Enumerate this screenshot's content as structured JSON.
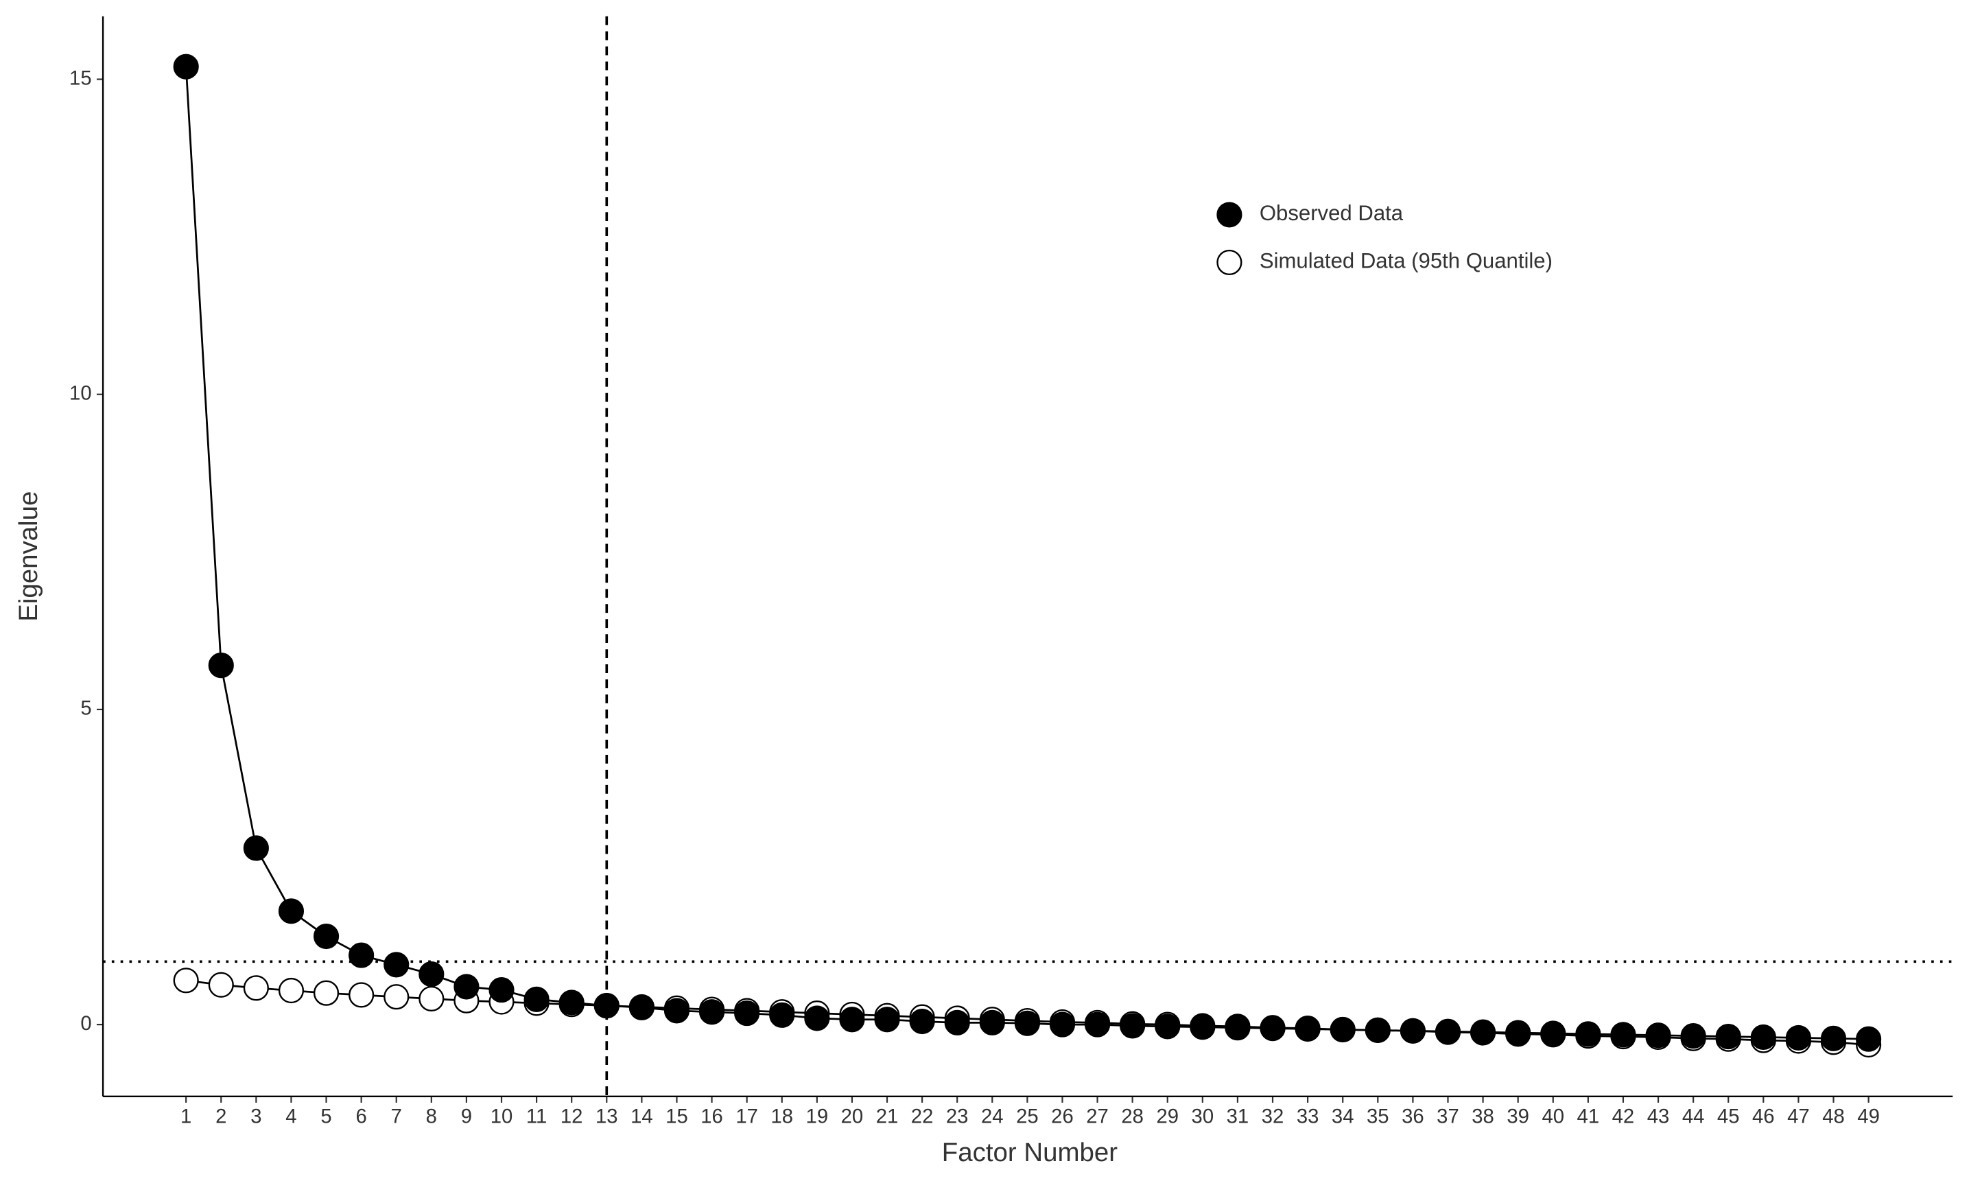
{
  "chart_data": {
    "type": "line",
    "xlabel": "Factor Number",
    "ylabel": "Eigenvalue",
    "x": [
      1,
      2,
      3,
      4,
      5,
      6,
      7,
      8,
      9,
      10,
      11,
      12,
      13,
      14,
      15,
      16,
      17,
      18,
      19,
      20,
      21,
      22,
      23,
      24,
      25,
      26,
      27,
      28,
      29,
      30,
      31,
      32,
      33,
      34,
      35,
      36,
      37,
      38,
      39,
      40,
      41,
      42,
      43,
      44,
      45,
      46,
      47,
      48,
      49
    ],
    "series": [
      {
        "name": "Observed Data",
        "color": "#000000",
        "marker": "filled",
        "values": [
          15.2,
          5.7,
          2.8,
          1.8,
          1.4,
          1.1,
          0.95,
          0.8,
          0.6,
          0.55,
          0.4,
          0.35,
          0.3,
          0.27,
          0.22,
          0.2,
          0.18,
          0.15,
          0.1,
          0.08,
          0.08,
          0.05,
          0.03,
          0.03,
          0.02,
          0.0,
          0.0,
          -0.02,
          -0.03,
          -0.04,
          -0.05,
          -0.06,
          -0.07,
          -0.08,
          -0.09,
          -0.1,
          -0.11,
          -0.12,
          -0.13,
          -0.14,
          -0.15,
          -0.16,
          -0.17,
          -0.18,
          -0.19,
          -0.2,
          -0.21,
          -0.22,
          -0.23
        ]
      },
      {
        "name": "Simulated Data (95th Quantile)",
        "color": "#000000",
        "marker": "open",
        "values": [
          0.7,
          0.63,
          0.58,
          0.54,
          0.5,
          0.47,
          0.44,
          0.41,
          0.38,
          0.36,
          0.34,
          0.32,
          0.3,
          0.28,
          0.26,
          0.24,
          0.22,
          0.2,
          0.18,
          0.16,
          0.14,
          0.12,
          0.1,
          0.08,
          0.06,
          0.04,
          0.03,
          0.01,
          0.0,
          -0.02,
          -0.03,
          -0.05,
          -0.06,
          -0.08,
          -0.09,
          -0.1,
          -0.12,
          -0.13,
          -0.15,
          -0.16,
          -0.18,
          -0.19,
          -0.2,
          -0.22,
          -0.23,
          -0.25,
          -0.26,
          -0.28,
          -0.32
        ]
      }
    ],
    "hline": 1,
    "vline": 13,
    "xlim": [
      -1.37,
      51.4
    ],
    "ylim": [
      -1.14,
      16.0
    ],
    "xticks": [
      1,
      2,
      3,
      4,
      5,
      6,
      7,
      8,
      9,
      10,
      11,
      12,
      13,
      14,
      15,
      16,
      17,
      18,
      19,
      20,
      21,
      22,
      23,
      24,
      25,
      26,
      27,
      28,
      29,
      30,
      31,
      32,
      33,
      34,
      35,
      36,
      37,
      38,
      39,
      40,
      41,
      42,
      43,
      44,
      45,
      46,
      47,
      48,
      49
    ],
    "yticks": [
      0,
      5,
      10,
      15
    ],
    "grid": false,
    "legend": "upper right"
  }
}
